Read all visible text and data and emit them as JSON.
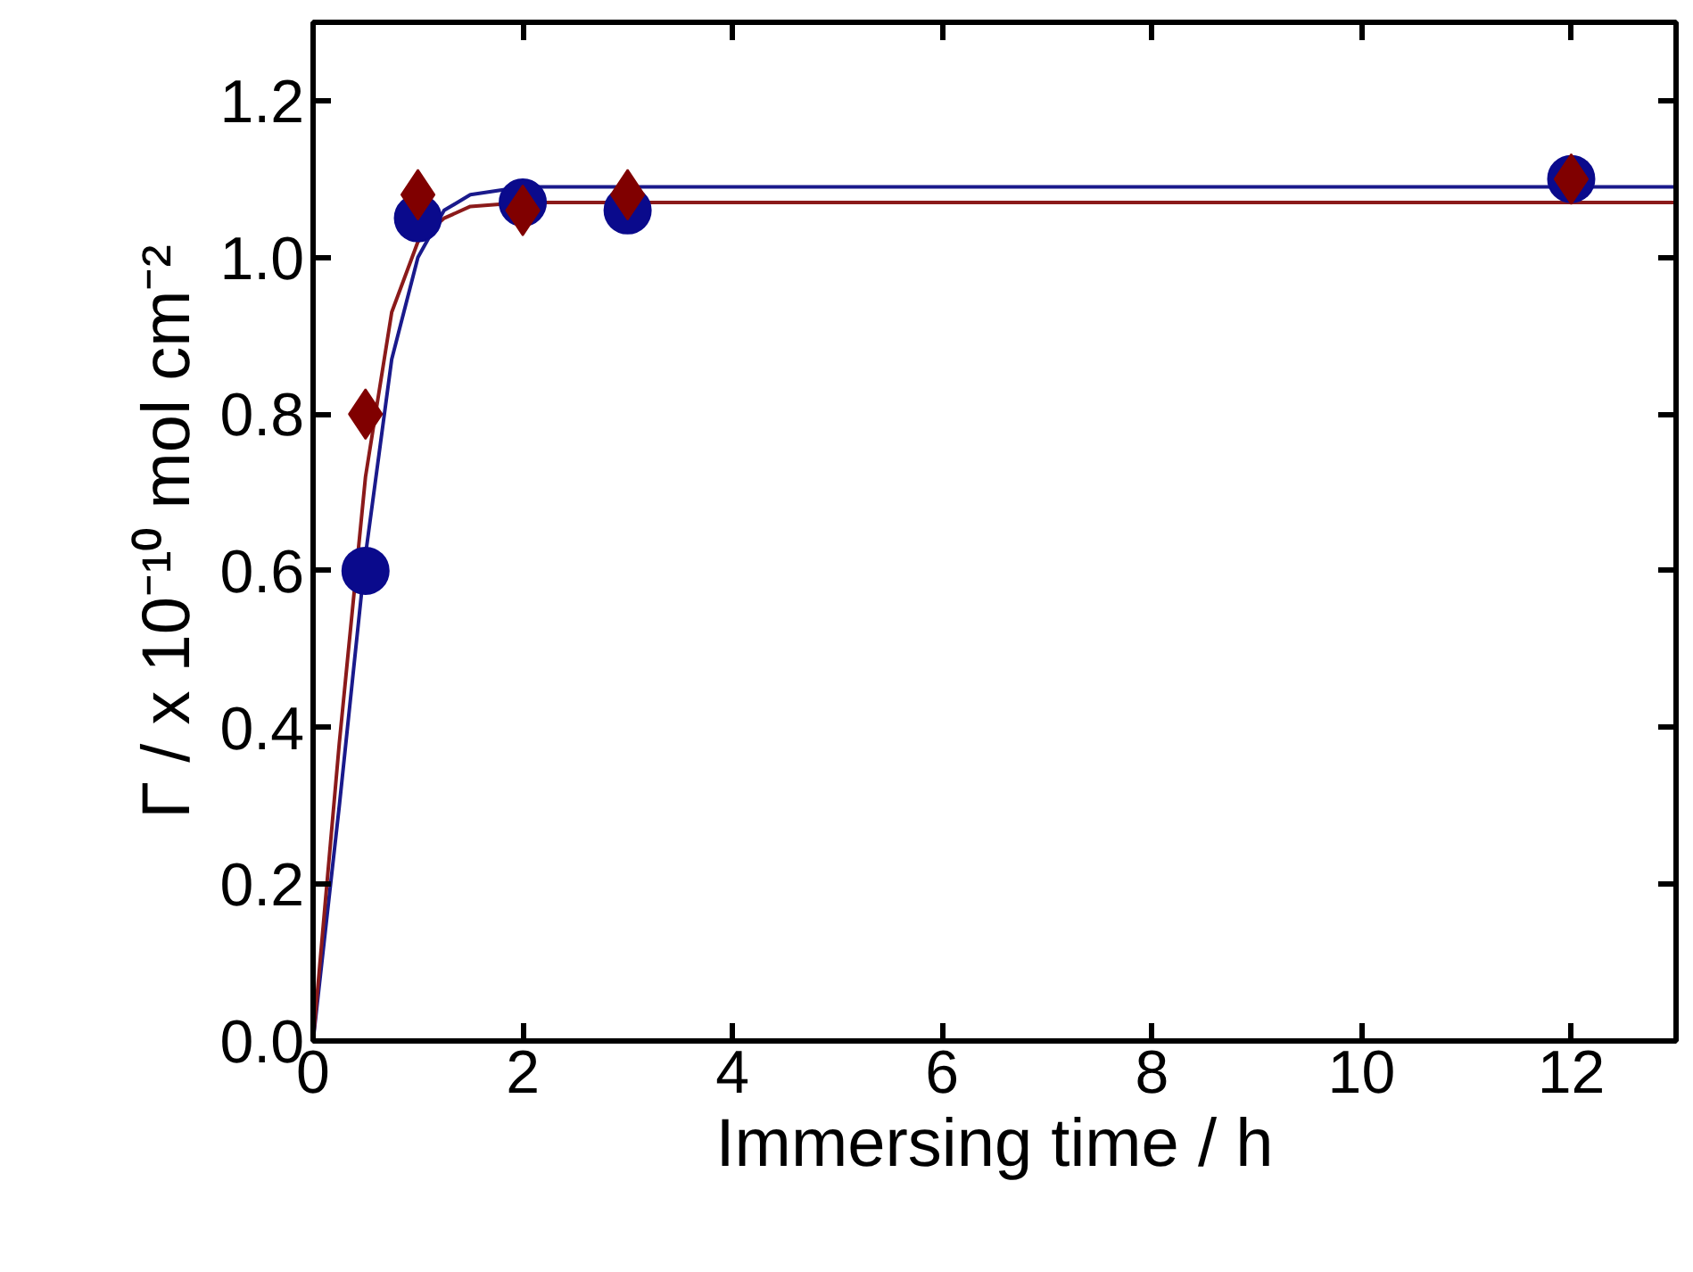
{
  "chart_data": {
    "type": "scatter",
    "xlabel": "Immersing time / h",
    "ylabel": "Γ / x 10⁻¹⁰ mol cm⁻²",
    "xlim": [
      0,
      13
    ],
    "ylim": [
      0,
      1.3
    ],
    "xticks": [
      0,
      2,
      4,
      6,
      8,
      10,
      12
    ],
    "yticks": [
      {
        "value": 0,
        "label": "0.0"
      },
      {
        "value": 0.2,
        "label": "0.2"
      },
      {
        "value": 0.4,
        "label": "0.4"
      },
      {
        "value": 0.6,
        "label": "0.6"
      },
      {
        "value": 0.8,
        "label": "0.8"
      },
      {
        "value": 1.0,
        "label": "1.0"
      },
      {
        "value": 1.2,
        "label": "1.2"
      }
    ],
    "grid": false,
    "series": [
      {
        "type": "line",
        "color": "#1a1a8c",
        "marker": "none",
        "x": [
          0,
          0.25,
          0.5,
          0.75,
          1,
          1.25,
          1.5,
          2,
          13
        ],
        "values": [
          0,
          0.3,
          0.62,
          0.87,
          1.0,
          1.06,
          1.08,
          1.09,
          1.09
        ]
      },
      {
        "type": "line",
        "color": "#8b1a1a",
        "marker": "none",
        "x": [
          0,
          0.25,
          0.5,
          0.75,
          1,
          1.25,
          1.5,
          2,
          13
        ],
        "values": [
          0,
          0.38,
          0.72,
          0.93,
          1.02,
          1.05,
          1.065,
          1.07,
          1.07
        ]
      },
      {
        "color": "#0a0a8c",
        "marker": "circle",
        "x": [
          0.5,
          1,
          2,
          3,
          12
        ],
        "values": [
          0.6,
          1.05,
          1.07,
          1.06,
          1.1
        ]
      },
      {
        "color": "#800000",
        "marker": "diamond",
        "x": [
          0.5,
          1,
          2,
          3,
          12
        ],
        "values": [
          0.8,
          1.08,
          1.06,
          1.08,
          1.1
        ]
      }
    ]
  }
}
